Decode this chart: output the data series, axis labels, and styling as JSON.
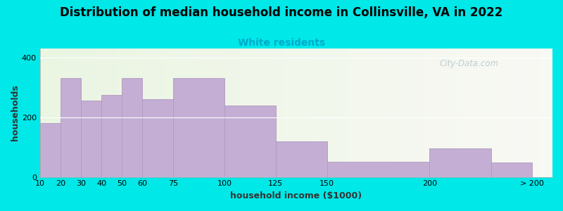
{
  "title": "Distribution of median household income in Collinsville, VA in 2022",
  "subtitle": "White residents",
  "xlabel": "household income ($1000)",
  "ylabel": "households",
  "bar_lefts": [
    10,
    20,
    30,
    40,
    50,
    60,
    75,
    100,
    125,
    150,
    200,
    230
  ],
  "bar_widths": [
    10,
    10,
    10,
    10,
    10,
    15,
    25,
    25,
    25,
    50,
    30,
    20
  ],
  "bar_values": [
    180,
    330,
    255,
    275,
    330,
    260,
    330,
    240,
    120,
    52,
    95,
    48
  ],
  "bar_color": "#c4aed4",
  "bar_edge_color": "#b09ac0",
  "background_color": "#00e8e8",
  "title_fontsize": 12,
  "subtitle_fontsize": 10,
  "subtitle_color": "#00aacc",
  "ylabel_fontsize": 9,
  "xlabel_fontsize": 9,
  "tick_label_fontsize": 8,
  "xtick_positions": [
    10,
    20,
    30,
    40,
    50,
    60,
    75,
    100,
    125,
    150,
    200,
    250
  ],
  "xtick_labels": [
    "10",
    "20",
    "30",
    "40",
    "50",
    "60",
    "75",
    "100",
    "125",
    "150",
    "200",
    "> 200"
  ],
  "yticks": [
    0,
    200,
    400
  ],
  "ylim": [
    0,
    430
  ],
  "xlim": [
    10,
    260
  ],
  "watermark_text": "City-Data.com",
  "watermark_color": "#b8c8d0",
  "grid_color": "#ffffff",
  "plot_bg_color_left": "#eaf5e2",
  "plot_bg_color_right": "#f8f8f4"
}
